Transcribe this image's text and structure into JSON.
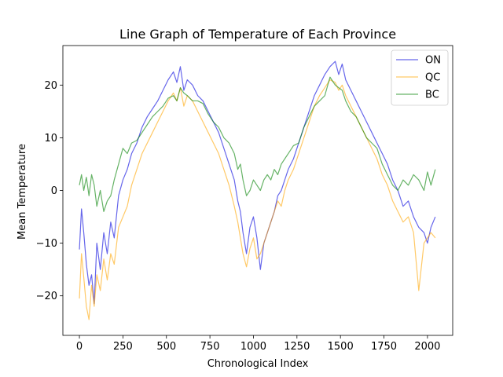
{
  "chart_data": {
    "type": "line",
    "title": "Line Graph of Temperature of Each Province",
    "xlabel": "Chronological Index",
    "ylabel": "Mean Temperature",
    "xlim": [
      -95,
      2145
    ],
    "ylim": [
      -27.5,
      27.5
    ],
    "xticks": [
      0,
      250,
      500,
      750,
      1000,
      1250,
      1500,
      1750,
      2000
    ],
    "xtick_labels": [
      "0",
      "250",
      "500",
      "750",
      "1000",
      "1250",
      "1500",
      "1750",
      "2000"
    ],
    "yticks": [
      -20,
      -10,
      0,
      10,
      20
    ],
    "ytick_labels": [
      "−20",
      "−10",
      "0",
      "10",
      "20"
    ],
    "grid": false,
    "legend_position": "top-right",
    "series": [
      {
        "name": "ON",
        "color": "#0000dd",
        "x": [
          0,
          12,
          25,
          40,
          55,
          70,
          85,
          100,
          120,
          140,
          160,
          180,
          200,
          225,
          250,
          275,
          300,
          330,
          360,
          390,
          420,
          450,
          480,
          510,
          540,
          560,
          580,
          600,
          620,
          650,
          680,
          710,
          740,
          770,
          800,
          830,
          860,
          890,
          910,
          925,
          940,
          960,
          980,
          1000,
          1020,
          1040,
          1060,
          1080,
          1100,
          1120,
          1140,
          1160,
          1180,
          1200,
          1230,
          1260,
          1290,
          1320,
          1350,
          1380,
          1410,
          1440,
          1470,
          1490,
          1510,
          1530,
          1560,
          1590,
          1620,
          1650,
          1680,
          1710,
          1740,
          1770,
          1800,
          1830,
          1860,
          1890,
          1920,
          1950,
          1980,
          2000,
          2020,
          2045
        ],
        "values": [
          -11.2,
          -3.5,
          -8.0,
          -14.0,
          -18.0,
          -16.0,
          -21.5,
          -10.0,
          -15.0,
          -8.0,
          -12.0,
          -6.0,
          -9.0,
          -1.0,
          2.0,
          4.0,
          7.0,
          9.0,
          12.0,
          14.0,
          15.5,
          17.0,
          19.0,
          21.0,
          22.5,
          20.5,
          23.5,
          19.0,
          21.0,
          20.0,
          18.0,
          17.0,
          15.0,
          13.0,
          11.0,
          8.0,
          5.0,
          2.0,
          -2.0,
          -4.0,
          -8.0,
          -12.0,
          -7.0,
          -5.0,
          -9.0,
          -15.0,
          -10.0,
          -8.0,
          -6.0,
          -4.0,
          -1.0,
          0.0,
          2.0,
          4.0,
          6.0,
          9.0,
          12.0,
          15.0,
          18.0,
          20.0,
          22.0,
          23.5,
          24.5,
          22.0,
          24.0,
          21.0,
          19.0,
          17.0,
          15.0,
          13.0,
          11.0,
          9.0,
          7.0,
          5.0,
          2.0,
          0.0,
          -3.0,
          -2.0,
          -5.0,
          -7.0,
          -8.0,
          -10.0,
          -7.0,
          -5.0
        ]
      },
      {
        "name": "QC",
        "color": "#ffa500",
        "x": [
          0,
          12,
          25,
          40,
          55,
          70,
          85,
          100,
          120,
          140,
          160,
          180,
          200,
          225,
          250,
          275,
          300,
          330,
          360,
          390,
          420,
          450,
          480,
          510,
          540,
          560,
          580,
          600,
          620,
          650,
          680,
          710,
          740,
          770,
          800,
          830,
          860,
          890,
          910,
          925,
          940,
          960,
          980,
          1000,
          1020,
          1040,
          1060,
          1080,
          1100,
          1120,
          1140,
          1160,
          1180,
          1200,
          1230,
          1260,
          1290,
          1320,
          1350,
          1380,
          1410,
          1440,
          1470,
          1490,
          1510,
          1530,
          1560,
          1590,
          1620,
          1650,
          1680,
          1710,
          1740,
          1770,
          1800,
          1830,
          1860,
          1890,
          1920,
          1950,
          1980,
          2000,
          2020,
          2045
        ],
        "values": [
          -20.5,
          -12.0,
          -16.5,
          -22.0,
          -24.5,
          -18.0,
          -22.0,
          -16.0,
          -19.0,
          -13.0,
          -17.0,
          -12.0,
          -14.0,
          -7.0,
          -5.0,
          -3.0,
          1.0,
          4.0,
          7.0,
          9.0,
          11.0,
          13.0,
          15.0,
          17.0,
          18.5,
          17.0,
          19.5,
          16.0,
          18.0,
          17.0,
          15.0,
          13.0,
          11.0,
          9.0,
          7.0,
          4.0,
          1.0,
          -3.0,
          -6.0,
          -9.0,
          -12.0,
          -14.5,
          -11.0,
          -9.0,
          -13.0,
          -12.0,
          -10.0,
          -8.0,
          -6.0,
          -4.0,
          -2.0,
          -3.0,
          0.0,
          2.0,
          4.0,
          7.0,
          10.0,
          13.0,
          16.0,
          18.0,
          19.5,
          21.0,
          20.5,
          19.0,
          20.0,
          18.0,
          16.0,
          14.0,
          12.0,
          10.0,
          8.0,
          6.0,
          3.0,
          1.0,
          -2.0,
          -4.0,
          -6.0,
          -5.0,
          -8.0,
          -19.0,
          -10.0,
          -9.0,
          -8.0,
          -9.0
        ]
      },
      {
        "name": "BC",
        "color": "#008000",
        "x": [
          0,
          12,
          25,
          40,
          55,
          70,
          85,
          100,
          120,
          140,
          160,
          180,
          200,
          225,
          250,
          275,
          300,
          330,
          360,
          390,
          420,
          450,
          480,
          510,
          540,
          560,
          580,
          600,
          620,
          650,
          680,
          710,
          740,
          770,
          800,
          830,
          860,
          890,
          910,
          925,
          940,
          960,
          980,
          1000,
          1020,
          1040,
          1060,
          1080,
          1100,
          1120,
          1140,
          1160,
          1180,
          1200,
          1230,
          1260,
          1290,
          1320,
          1350,
          1380,
          1410,
          1440,
          1470,
          1490,
          1510,
          1530,
          1560,
          1590,
          1620,
          1650,
          1680,
          1710,
          1740,
          1770,
          1800,
          1830,
          1860,
          1890,
          1920,
          1950,
          1980,
          2000,
          2020,
          2045
        ],
        "values": [
          1.0,
          3.0,
          0.0,
          2.5,
          -1.0,
          3.0,
          1.0,
          -3.0,
          0.0,
          -4.0,
          -2.0,
          -1.0,
          2.0,
          5.0,
          8.0,
          7.0,
          9.0,
          9.5,
          11.0,
          12.5,
          14.0,
          15.0,
          16.0,
          17.5,
          18.0,
          17.0,
          19.5,
          18.5,
          18.0,
          17.0,
          17.0,
          16.5,
          14.5,
          13.0,
          12.0,
          10.0,
          9.0,
          7.0,
          4.0,
          5.0,
          2.0,
          -1.0,
          0.0,
          2.0,
          1.0,
          0.0,
          2.0,
          3.0,
          2.0,
          4.0,
          3.0,
          5.0,
          6.0,
          7.0,
          8.5,
          9.0,
          12.0,
          14.0,
          16.0,
          17.0,
          18.0,
          21.5,
          20.0,
          19.5,
          19.0,
          17.0,
          15.0,
          14.0,
          12.0,
          10.0,
          9.0,
          8.0,
          5.0,
          3.0,
          1.0,
          0.0,
          2.0,
          1.0,
          3.0,
          2.0,
          0.0,
          3.5,
          1.0,
          4.0
        ]
      }
    ]
  }
}
